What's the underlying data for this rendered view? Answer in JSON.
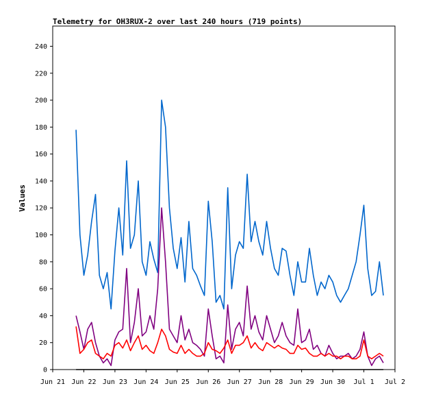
{
  "chart_data": {
    "type": "line",
    "title": "Telemetry for OH3RUX-2 over last 240 hours (719 points)",
    "ylabel": "Values",
    "xlabel": "",
    "ylim": [
      0,
      255
    ],
    "y_ticks": [
      0,
      20,
      40,
      60,
      80,
      100,
      120,
      140,
      160,
      180,
      200,
      220,
      240
    ],
    "x_ticks": [
      "Jun 21",
      "Jun 22",
      "Jun 23",
      "Jun 24",
      "Jun 25",
      "Jun 26",
      "Jun 27",
      "Jun 28",
      "Jun 29",
      "Jun 30",
      "Jul 1",
      "Jul 2"
    ],
    "xlim": [
      "2023-06-21T00:00",
      "2023-07-02T00:00"
    ],
    "grid": false,
    "series": [
      {
        "color": "#0066cc",
        "x": [
          "2023-06-21T18:00",
          "2023-06-21T21:00",
          "2023-06-22T00:00",
          "2023-06-22T03:00",
          "2023-06-22T06:00",
          "2023-06-22T09:00",
          "2023-06-22T12:00",
          "2023-06-22T15:00",
          "2023-06-22T18:00",
          "2023-06-22T21:00",
          "2023-06-23T00:00",
          "2023-06-23T03:00",
          "2023-06-23T06:00",
          "2023-06-23T09:00",
          "2023-06-23T12:00",
          "2023-06-23T15:00",
          "2023-06-23T18:00",
          "2023-06-23T21:00",
          "2023-06-24T00:00",
          "2023-06-24T03:00",
          "2023-06-24T06:00",
          "2023-06-24T09:00",
          "2023-06-24T12:00",
          "2023-06-24T15:00",
          "2023-06-24T18:00",
          "2023-06-24T21:00",
          "2023-06-25T00:00",
          "2023-06-25T03:00",
          "2023-06-25T06:00",
          "2023-06-25T09:00",
          "2023-06-25T12:00",
          "2023-06-25T15:00",
          "2023-06-25T18:00",
          "2023-06-25T21:00",
          "2023-06-26T00:00",
          "2023-06-26T03:00",
          "2023-06-26T06:00",
          "2023-06-26T09:00",
          "2023-06-26T12:00",
          "2023-06-26T15:00",
          "2023-06-26T18:00",
          "2023-06-26T21:00",
          "2023-06-27T00:00",
          "2023-06-27T03:00",
          "2023-06-27T06:00",
          "2023-06-27T09:00",
          "2023-06-27T12:00",
          "2023-06-27T15:00",
          "2023-06-27T18:00",
          "2023-06-27T21:00",
          "2023-06-28T00:00",
          "2023-06-28T03:00",
          "2023-06-28T06:00",
          "2023-06-28T09:00",
          "2023-06-28T12:00",
          "2023-06-28T15:00",
          "2023-06-28T18:00",
          "2023-06-28T21:00",
          "2023-06-29T00:00",
          "2023-06-29T03:00",
          "2023-06-29T06:00",
          "2023-06-29T09:00",
          "2023-06-29T12:00",
          "2023-06-29T15:00",
          "2023-06-29T18:00",
          "2023-06-29T21:00",
          "2023-06-30T00:00",
          "2023-06-30T03:00",
          "2023-06-30T06:00",
          "2023-06-30T09:00",
          "2023-06-30T12:00",
          "2023-06-30T15:00",
          "2023-06-30T18:00",
          "2023-06-30T21:00",
          "2023-07-01T00:00",
          "2023-07-01T03:00",
          "2023-07-01T06:00",
          "2023-07-01T09:00",
          "2023-07-01T12:00",
          "2023-07-01T15:00"
        ],
        "values": [
          178,
          100,
          70,
          85,
          110,
          130,
          70,
          60,
          72,
          45,
          88,
          120,
          85,
          155,
          90,
          100,
          140,
          80,
          70,
          95,
          82,
          72,
          200,
          180,
          120,
          90,
          75,
          98,
          65,
          110,
          75,
          70,
          62,
          55,
          125,
          95,
          50,
          55,
          45,
          135,
          60,
          85,
          95,
          90,
          145,
          95,
          110,
          95,
          85,
          110,
          90,
          75,
          70,
          90,
          88,
          70,
          55,
          80,
          65,
          65,
          90,
          70,
          55,
          65,
          60,
          70,
          65,
          55,
          50,
          55,
          60,
          70,
          80,
          100,
          122,
          75,
          55,
          58,
          80,
          55
        ]
      },
      {
        "color": "#800080",
        "x": [
          "2023-06-21T18:00",
          "2023-06-21T21:00",
          "2023-06-22T00:00",
          "2023-06-22T03:00",
          "2023-06-22T06:00",
          "2023-06-22T09:00",
          "2023-06-22T12:00",
          "2023-06-22T15:00",
          "2023-06-22T18:00",
          "2023-06-22T21:00",
          "2023-06-23T00:00",
          "2023-06-23T03:00",
          "2023-06-23T06:00",
          "2023-06-23T09:00",
          "2023-06-23T12:00",
          "2023-06-23T15:00",
          "2023-06-23T18:00",
          "2023-06-23T21:00",
          "2023-06-24T00:00",
          "2023-06-24T03:00",
          "2023-06-24T06:00",
          "2023-06-24T09:00",
          "2023-06-24T12:00",
          "2023-06-24T15:00",
          "2023-06-24T18:00",
          "2023-06-24T21:00",
          "2023-06-25T00:00",
          "2023-06-25T03:00",
          "2023-06-25T06:00",
          "2023-06-25T09:00",
          "2023-06-25T12:00",
          "2023-06-25T15:00",
          "2023-06-25T18:00",
          "2023-06-25T21:00",
          "2023-06-26T00:00",
          "2023-06-26T03:00",
          "2023-06-26T06:00",
          "2023-06-26T09:00",
          "2023-06-26T12:00",
          "2023-06-26T15:00",
          "2023-06-26T18:00",
          "2023-06-26T21:00",
          "2023-06-27T00:00",
          "2023-06-27T03:00",
          "2023-06-27T06:00",
          "2023-06-27T09:00",
          "2023-06-27T12:00",
          "2023-06-27T15:00",
          "2023-06-27T18:00",
          "2023-06-27T21:00",
          "2023-06-28T00:00",
          "2023-06-28T03:00",
          "2023-06-28T06:00",
          "2023-06-28T09:00",
          "2023-06-28T12:00",
          "2023-06-28T15:00",
          "2023-06-28T18:00",
          "2023-06-28T21:00",
          "2023-06-29T00:00",
          "2023-06-29T03:00",
          "2023-06-29T06:00",
          "2023-06-29T09:00",
          "2023-06-29T12:00",
          "2023-06-29T15:00",
          "2023-06-29T18:00",
          "2023-06-29T21:00",
          "2023-06-30T00:00",
          "2023-06-30T03:00",
          "2023-06-30T06:00",
          "2023-06-30T09:00",
          "2023-06-30T12:00",
          "2023-06-30T15:00",
          "2023-06-30T18:00",
          "2023-06-30T21:00",
          "2023-07-01T00:00",
          "2023-07-01T03:00",
          "2023-07-01T06:00",
          "2023-07-01T09:00",
          "2023-07-01T12:00",
          "2023-07-01T15:00"
        ],
        "values": [
          40,
          28,
          15,
          30,
          35,
          20,
          10,
          5,
          8,
          3,
          22,
          28,
          30,
          75,
          20,
          35,
          60,
          25,
          28,
          40,
          30,
          60,
          120,
          80,
          30,
          25,
          20,
          40,
          22,
          30,
          20,
          18,
          15,
          10,
          45,
          25,
          8,
          10,
          5,
          48,
          15,
          30,
          35,
          25,
          62,
          30,
          40,
          28,
          22,
          40,
          30,
          20,
          25,
          35,
          25,
          20,
          18,
          45,
          20,
          22,
          30,
          15,
          18,
          12,
          10,
          18,
          12,
          8,
          10,
          10,
          12,
          8,
          10,
          15,
          28,
          10,
          3,
          8,
          10,
          5
        ]
      },
      {
        "color": "#ff0000",
        "x": [
          "2023-06-21T18:00",
          "2023-06-21T21:00",
          "2023-06-22T00:00",
          "2023-06-22T03:00",
          "2023-06-22T06:00",
          "2023-06-22T09:00",
          "2023-06-22T12:00",
          "2023-06-22T15:00",
          "2023-06-22T18:00",
          "2023-06-22T21:00",
          "2023-06-23T00:00",
          "2023-06-23T03:00",
          "2023-06-23T06:00",
          "2023-06-23T09:00",
          "2023-06-23T12:00",
          "2023-06-23T15:00",
          "2023-06-23T18:00",
          "2023-06-23T21:00",
          "2023-06-24T00:00",
          "2023-06-24T03:00",
          "2023-06-24T06:00",
          "2023-06-24T09:00",
          "2023-06-24T12:00",
          "2023-06-24T15:00",
          "2023-06-24T18:00",
          "2023-06-24T21:00",
          "2023-06-25T00:00",
          "2023-06-25T03:00",
          "2023-06-25T06:00",
          "2023-06-25T09:00",
          "2023-06-25T12:00",
          "2023-06-25T15:00",
          "2023-06-25T18:00",
          "2023-06-25T21:00",
          "2023-06-26T00:00",
          "2023-06-26T03:00",
          "2023-06-26T06:00",
          "2023-06-26T09:00",
          "2023-06-26T12:00",
          "2023-06-26T15:00",
          "2023-06-26T18:00",
          "2023-06-26T21:00",
          "2023-06-27T00:00",
          "2023-06-27T03:00",
          "2023-06-27T06:00",
          "2023-06-27T09:00",
          "2023-06-27T12:00",
          "2023-06-27T15:00",
          "2023-06-27T18:00",
          "2023-06-27T21:00",
          "2023-06-28T00:00",
          "2023-06-28T03:00",
          "2023-06-28T06:00",
          "2023-06-28T09:00",
          "2023-06-28T12:00",
          "2023-06-28T15:00",
          "2023-06-28T18:00",
          "2023-06-28T21:00",
          "2023-06-29T00:00",
          "2023-06-29T03:00",
          "2023-06-29T06:00",
          "2023-06-29T09:00",
          "2023-06-29T12:00",
          "2023-06-29T15:00",
          "2023-06-29T18:00",
          "2023-06-29T21:00",
          "2023-06-30T00:00",
          "2023-06-30T03:00",
          "2023-06-30T06:00",
          "2023-06-30T09:00",
          "2023-06-30T12:00",
          "2023-06-30T15:00",
          "2023-06-30T18:00",
          "2023-06-30T21:00",
          "2023-07-01T00:00",
          "2023-07-01T03:00",
          "2023-07-01T06:00",
          "2023-07-01T09:00",
          "2023-07-01T12:00",
          "2023-07-01T15:00"
        ],
        "values": [
          32,
          12,
          15,
          20,
          22,
          12,
          10,
          8,
          12,
          10,
          18,
          20,
          16,
          22,
          14,
          20,
          25,
          15,
          18,
          14,
          12,
          20,
          30,
          25,
          15,
          13,
          12,
          18,
          12,
          15,
          12,
          10,
          10,
          12,
          20,
          15,
          14,
          12,
          16,
          22,
          12,
          18,
          18,
          20,
          25,
          16,
          20,
          16,
          14,
          20,
          18,
          16,
          18,
          16,
          15,
          12,
          12,
          18,
          15,
          16,
          12,
          10,
          10,
          12,
          10,
          12,
          10,
          10,
          8,
          10,
          10,
          8,
          8,
          10,
          22,
          10,
          8,
          10,
          12,
          10
        ]
      },
      {
        "color": "#000000",
        "x": [
          "2023-06-21T18:00",
          "2023-07-01T15:00"
        ],
        "values": [
          0,
          0
        ]
      }
    ]
  }
}
